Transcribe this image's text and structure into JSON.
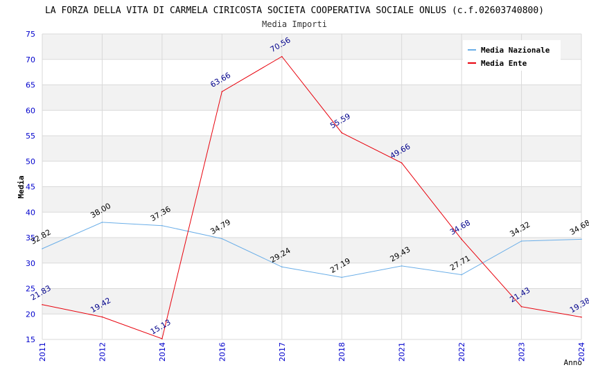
{
  "chart_data": {
    "type": "line",
    "title": "LA FORZA DELLA VITA DI CARMELA CIRICOSTA SOCIETA COOPERATIVA SOCIALE ONLUS (c.f.02603740800)",
    "subtitle": "Media Importi",
    "xlabel": "Anno",
    "ylabel": "Media",
    "ylim": [
      15,
      75
    ],
    "yticks": [
      15,
      20,
      25,
      30,
      35,
      40,
      45,
      50,
      55,
      60,
      65,
      70,
      75
    ],
    "categories": [
      "2011",
      "2012",
      "2014",
      "2016",
      "2017",
      "2018",
      "2021",
      "2022",
      "2023",
      "2024"
    ],
    "series": [
      {
        "name": "Media Nazionale",
        "color": "#6aaee8",
        "label_color": "#000000",
        "values": [
          32.82,
          38.0,
          37.36,
          34.79,
          29.24,
          27.19,
          29.43,
          27.71,
          34.32,
          34.68
        ],
        "labels": [
          "32.82",
          "38.00",
          "37.36",
          "34.79",
          "29.24",
          "27.19",
          "29.43",
          "27.71",
          "34.32",
          "34.68"
        ]
      },
      {
        "name": "Media Ente",
        "color": "#e8000b",
        "label_color": "#00008b",
        "values": [
          21.83,
          19.42,
          15.13,
          63.66,
          70.56,
          55.59,
          49.66,
          34.68,
          21.43,
          19.38
        ],
        "labels": [
          "21.83",
          "19.42",
          "15.13",
          "63.66",
          "70.56",
          "55.59",
          "49.66",
          "34.68",
          "21.43",
          "19.38"
        ]
      }
    ],
    "grid": true,
    "legend_position": "top-right",
    "colors": {
      "band": "#f2f2f2",
      "grid": "#d9d9d9",
      "axis_tick": "#0000cc"
    }
  }
}
